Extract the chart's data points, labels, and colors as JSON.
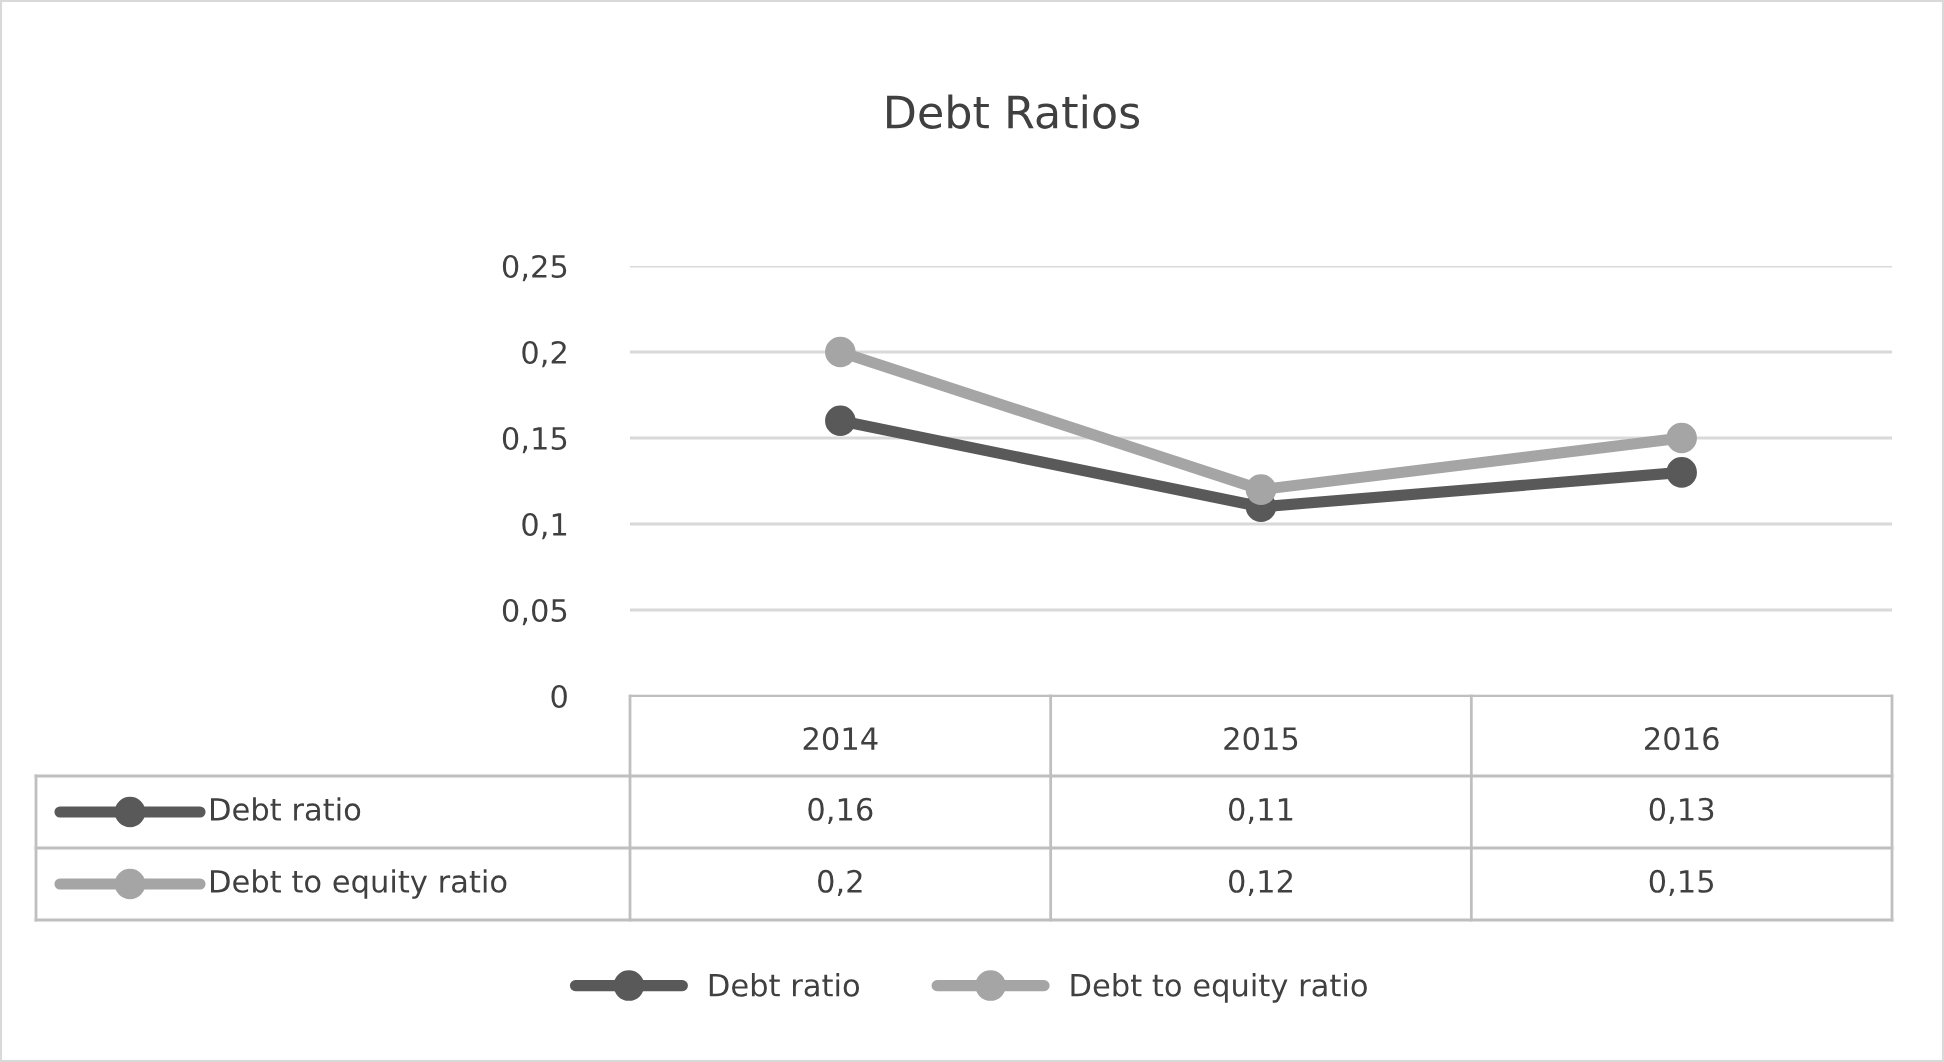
{
  "chart_data": {
    "type": "line",
    "title": "Debt Ratios",
    "categories": [
      "2014",
      "2015",
      "2016"
    ],
    "series": [
      {
        "name": "Debt ratio",
        "color": "#595959",
        "values": [
          0.16,
          0.11,
          0.13
        ],
        "value_labels": [
          "0,16",
          "0,11",
          "0,13"
        ]
      },
      {
        "name": "Debt to equity ratio",
        "color": "#a5a5a5",
        "values": [
          0.2,
          0.12,
          0.15
        ],
        "value_labels": [
          "0,2",
          "0,12",
          "0,15"
        ]
      }
    ],
    "ylim": [
      0,
      0.25
    ],
    "yticks": [
      {
        "value": 0,
        "label": "0"
      },
      {
        "value": 0.05,
        "label": "0,05"
      },
      {
        "value": 0.1,
        "label": "0,1"
      },
      {
        "value": 0.15,
        "label": "0,15"
      },
      {
        "value": 0.2,
        "label": "0,2"
      },
      {
        "value": 0.25,
        "label": "0,25"
      }
    ],
    "grid": "y",
    "legend": "bottom",
    "marker": "circle",
    "line_style": "solid"
  }
}
